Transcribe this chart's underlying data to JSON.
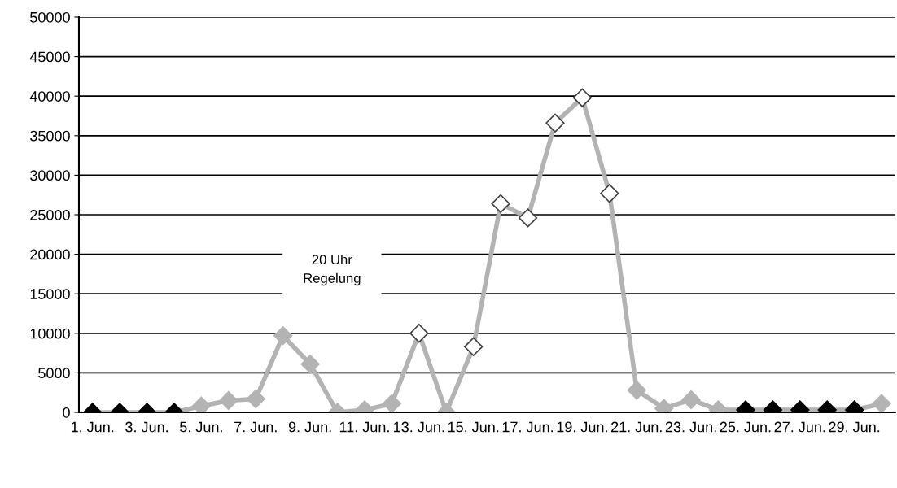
{
  "chart_data": {
    "type": "line",
    "categories": [
      "1. Jun.",
      null,
      "3. Jun.",
      null,
      "5. Jun.",
      null,
      "7. Jun.",
      null,
      "9. Jun.",
      null,
      "11. Jun.",
      null,
      "13. Jun.",
      null,
      "15. Jun.",
      null,
      "17. Jun.",
      null,
      "19. Jun.",
      null,
      "21. Jun.",
      null,
      "23. Jun.",
      null,
      "25. Jun.",
      null,
      "27. Jun.",
      null,
      "29. Jun.",
      null
    ],
    "series": [
      {
        "color": "#b3b3b3",
        "values": [
          0,
          0,
          0,
          0,
          800,
          1500,
          1700,
          9700,
          6100,
          0,
          300,
          1100,
          10000,
          0,
          8300,
          26400,
          24600,
          36600,
          39800,
          27700,
          2800,
          500,
          1600,
          300,
          300,
          300,
          300,
          300,
          300,
          1100
        ],
        "colors": [
          "#000000",
          "#000000",
          "#000000",
          "#000000",
          "#b3b3b3",
          "#b3b3b3",
          "#b3b3b3",
          "#b3b3b3",
          "#b3b3b3",
          "#b3b3b3",
          "#b3b3b3",
          "#b3b3b3",
          "#ffffff",
          "#b3b3b3",
          "#ffffff",
          "#ffffff",
          "#ffffff",
          "#ffffff",
          "#ffffff",
          "#ffffff",
          "#b3b3b3",
          "#b3b3b3",
          "#b3b3b3",
          "#b3b3b3",
          "#000000",
          "#000000",
          "#000000",
          "#000000",
          "#000000",
          "#b3b3b3"
        ]
      }
    ],
    "annotations": [
      "20 Uhr\nRegelung"
    ],
    "ylim": [
      0,
      50000
    ],
    "yticks": [
      0,
      5000,
      10000,
      15000,
      20000,
      25000,
      30000,
      35000,
      40000,
      45000,
      50000
    ],
    "grid": "y",
    "marker": "diamond",
    "line_style": "solid"
  }
}
